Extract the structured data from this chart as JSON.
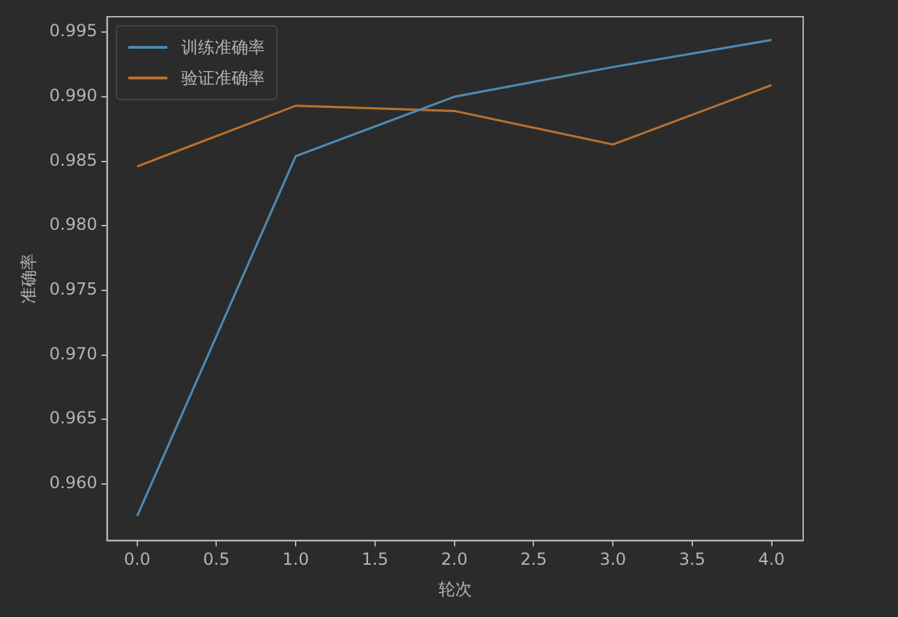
{
  "chart_data": {
    "type": "line",
    "xlabel": "轮次",
    "ylabel": "准确率",
    "x": [
      0,
      1,
      2,
      3,
      4
    ],
    "series": [
      {
        "name": "训练准确率",
        "color": "#4e89b0",
        "values": [
          0.9575,
          0.9854,
          0.99,
          0.9923,
          0.9944
        ]
      },
      {
        "name": "验证准确率",
        "color": "#b8702e",
        "values": [
          0.9846,
          0.9893,
          0.9889,
          0.9863,
          0.9909
        ]
      }
    ],
    "xlim": [
      -0.19,
      4.2
    ],
    "xticks": [
      {
        "value": 0,
        "label": "0.0"
      },
      0.5,
      {
        "value": 1,
        "label": "1.0"
      },
      1.5,
      {
        "value": 2,
        "label": "2.0"
      },
      2.5,
      {
        "value": 3,
        "label": "3.0"
      },
      3.5,
      {
        "value": 4,
        "label": "4.0"
      }
    ],
    "ylim": [
      0.9556,
      0.9962
    ],
    "yticks": [
      {
        "value": 0.96,
        "label": "0.960"
      },
      0.965,
      {
        "value": 0.97,
        "label": "0.970"
      },
      0.975,
      {
        "value": 0.98,
        "label": "0.980"
      },
      0.985,
      {
        "value": 0.99,
        "label": "0.990"
      },
      0.995
    ],
    "grid": false,
    "legend": "top left",
    "marker": "none",
    "line_style": "solid"
  }
}
